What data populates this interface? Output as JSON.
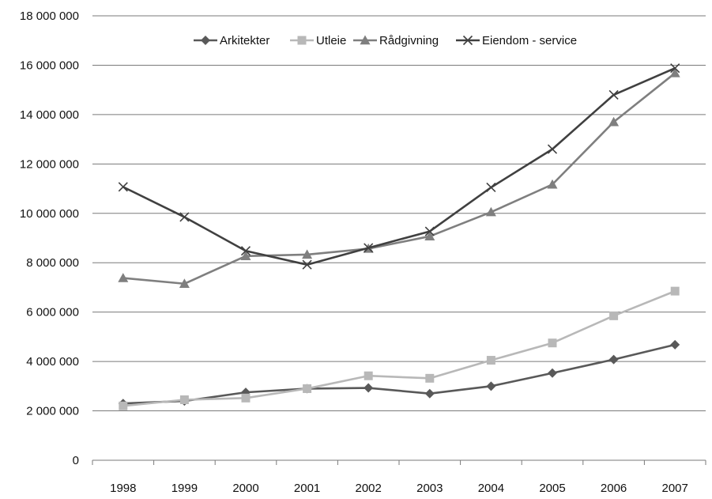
{
  "chart_data": {
    "type": "line",
    "title": "",
    "xlabel": "",
    "ylabel": "",
    "categories": [
      "1998",
      "1999",
      "2000",
      "2001",
      "2002",
      "2003",
      "2004",
      "2005",
      "2006",
      "2007"
    ],
    "ylim": [
      0,
      18000000
    ],
    "yticks": [
      0,
      2000000,
      4000000,
      6000000,
      8000000,
      10000000,
      12000000,
      14000000,
      16000000,
      18000000
    ],
    "ytick_labels": [
      "0",
      "2 000 000",
      "4 000 000",
      "6 000 000",
      "8 000 000",
      "10 000 000",
      "12 000 000",
      "14 000 000",
      "16 000 000",
      "18 000 000"
    ],
    "grid": "horizontal",
    "legend_position": "top",
    "series": [
      {
        "name": "Arkitekter",
        "marker": "diamond",
        "color": "#595959",
        "values": [
          2300000,
          2400000,
          2750000,
          2900000,
          2930000,
          2700000,
          3000000,
          3530000,
          4080000,
          4680000
        ]
      },
      {
        "name": "Utleie",
        "marker": "square",
        "color": "#b8b8b8",
        "values": [
          2200000,
          2450000,
          2520000,
          2900000,
          3420000,
          3320000,
          4050000,
          4750000,
          5850000,
          6850000
        ]
      },
      {
        "name": "Rådgivning",
        "marker": "triangle",
        "color": "#7f7f7f",
        "values": [
          7380000,
          7150000,
          8270000,
          8330000,
          8570000,
          9070000,
          10050000,
          11170000,
          13700000,
          15680000
        ]
      },
      {
        "name": "Eiendom - service",
        "marker": "x",
        "color": "#404040",
        "values": [
          11070000,
          9850000,
          8480000,
          7920000,
          8600000,
          9270000,
          11050000,
          12600000,
          14800000,
          15880000
        ]
      }
    ]
  }
}
